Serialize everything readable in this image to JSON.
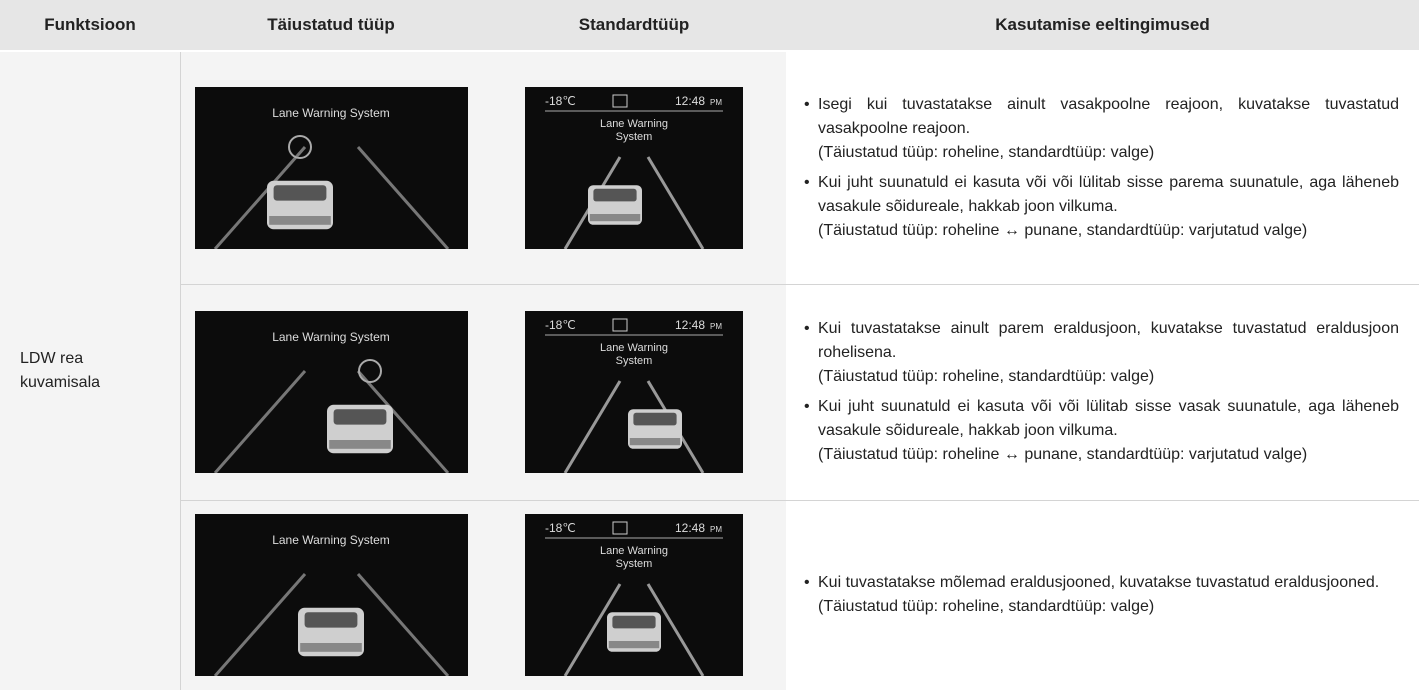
{
  "header": {
    "columns": [
      "Funktsioon",
      "Täiustatud tüüp",
      "Standardtüüp",
      "Kasutamise eeltingimused"
    ]
  },
  "function_lines": [
    "LDW rea",
    "kuvamisala"
  ],
  "rows": [
    {
      "advanced": {
        "label": "Lane Warning System"
      },
      "standard": {
        "temp": "-18℃",
        "time": "12:48",
        "ampm": "PM",
        "label_lines": [
          "Lane Warning",
          "System"
        ]
      },
      "conditions": [
        {
          "text": "Isegi kui tuvastatakse ainult vasakpoolne reajoon, kuvatakse tuvastatud vasakpoolne reajoon.",
          "note": "(Täiustatud tüüp: roheline, standardtüüp: valge)"
        },
        {
          "text": "Kui juht suunatuld ei kasuta või või lülitab sisse parema suunatule, aga läheneb vasakule sõidureale, hakkab  joon vilkuma.",
          "note": "(Täiustatud tüüp: roheline ↔ punane, standardtüüp: varjutatud valge)"
        }
      ]
    },
    {
      "advanced": {
        "label": "Lane Warning System"
      },
      "standard": {
        "temp": "-18℃",
        "time": "12:48",
        "ampm": "PM",
        "label_lines": [
          "Lane Warning",
          "System"
        ]
      },
      "conditions": [
        {
          "text": "Kui tuvastatakse ainult parem eraldusjoon, kuvatakse tuvastatud eraldusjoon rohelisena.",
          "note": "(Täiustatud tüüp: roheline, standardtüüp: valge)"
        },
        {
          "text": "Kui juht suunatuld ei kasuta või või lülitab sisse vasak suunatule, aga läheneb vasakule sõidureale, hakkab  joon vilkuma.",
          "note": "(Täiustatud tüüp: roheline ↔ punane, standardtüüp: varjutatud valge)"
        }
      ]
    },
    {
      "advanced": {
        "label": "Lane Warning System"
      },
      "standard": {
        "temp": "-18℃",
        "time": "12:48",
        "ampm": "PM",
        "label_lines": [
          "Lane Warning",
          "System"
        ]
      },
      "conditions": [
        {
          "text": "Kui tuvastatakse mõlemad eraldusjooned, kuvatakse tuvastatud eraldusjooned.",
          "note": "(Täiustatud tüüp: roheline, standardtüüp: valge)"
        }
      ]
    }
  ]
}
